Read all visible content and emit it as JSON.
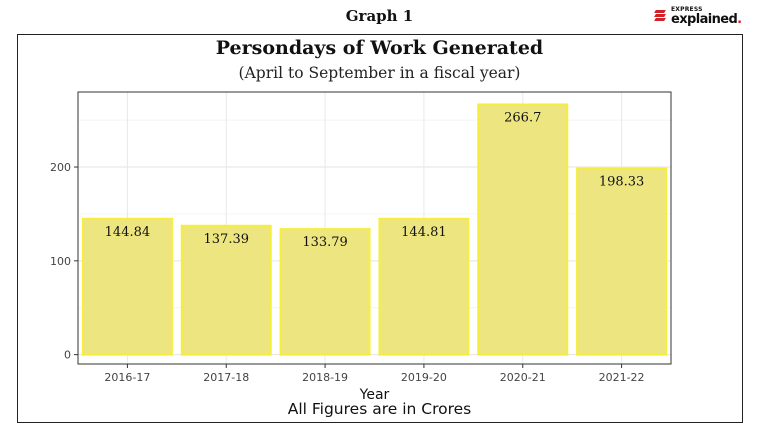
{
  "header": {
    "graph_label": "Graph 1",
    "logo_small": "EXPRESS",
    "logo_big": "explained",
    "logo_dot": ".",
    "logo_accent": "#d32027"
  },
  "chart_data": {
    "type": "bar",
    "title": "Persondays of Work Generated",
    "subtitle": "(April to September in a fiscal year)",
    "xlabel": "Year",
    "ylabel": "",
    "categories": [
      "2016-17",
      "2017-18",
      "2018-19",
      "2019-20",
      "2020-21",
      "2021-22"
    ],
    "values": [
      144.84,
      137.39,
      133.79,
      144.81,
      266.7,
      198.33
    ],
    "data_labels": [
      "144.84",
      "137.39",
      "133.79",
      "144.81",
      "266.7",
      "198.33"
    ],
    "y_ticks": [
      0,
      100,
      200
    ],
    "ylim": [
      -10,
      280
    ],
    "grid": true,
    "bar_fill": "#ede680",
    "bar_stroke": "#f7ee3c",
    "caption": "All Figures are in Crores"
  }
}
